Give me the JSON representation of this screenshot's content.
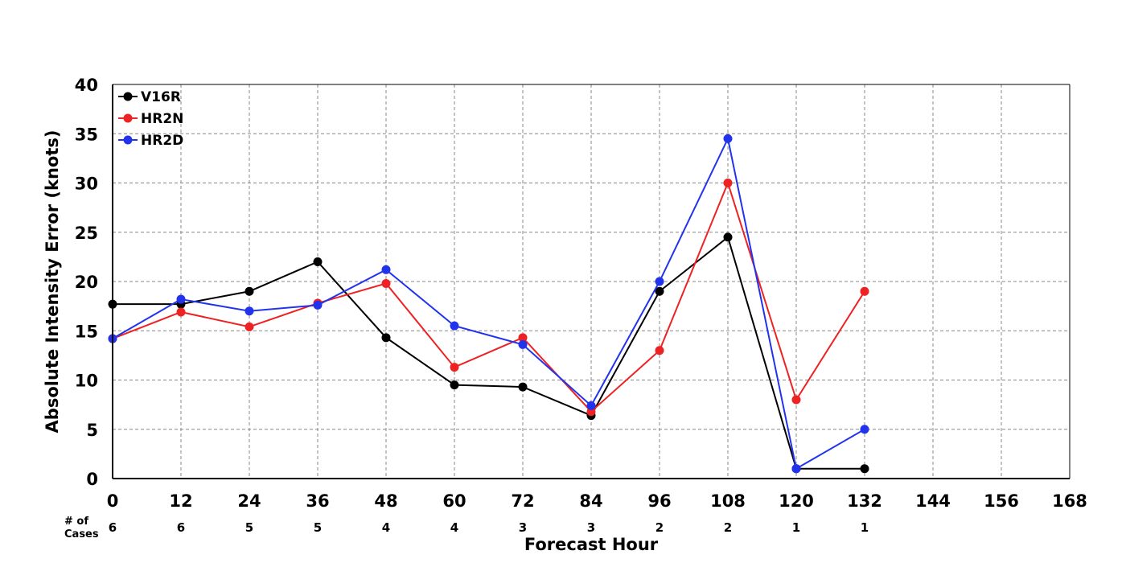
{
  "chart_data": {
    "type": "line",
    "xlabel": "Forecast Hour",
    "ylabel": "Absolute Intensity Error (knots)",
    "xlim": [
      0,
      168
    ],
    "ylim": [
      0,
      40
    ],
    "x_ticks": [
      0,
      12,
      24,
      36,
      48,
      60,
      72,
      84,
      96,
      108,
      120,
      132,
      144,
      156,
      168
    ],
    "y_ticks": [
      0,
      5,
      10,
      15,
      20,
      25,
      30,
      35,
      40
    ],
    "grid": true,
    "legend_position": "top-left",
    "cases_title": [
      "# of",
      "Cases"
    ],
    "cases_x": [
      0,
      12,
      24,
      36,
      48,
      60,
      72,
      84,
      96,
      108,
      120,
      132
    ],
    "cases": [
      6,
      6,
      5,
      5,
      4,
      4,
      3,
      3,
      2,
      2,
      1,
      1
    ],
    "series": [
      {
        "name": "V16R",
        "color": "#000000",
        "x": [
          0,
          12,
          24,
          36,
          48,
          60,
          72,
          84,
          96,
          108,
          120,
          132
        ],
        "values": [
          17.7,
          17.7,
          19.0,
          22.0,
          14.3,
          9.5,
          9.3,
          6.4,
          19.0,
          24.5,
          1.0,
          1.0
        ]
      },
      {
        "name": "HR2N",
        "color": "#ee2222",
        "x": [
          0,
          12,
          24,
          36,
          48,
          60,
          72,
          84,
          96,
          108,
          120,
          132
        ],
        "values": [
          14.2,
          16.9,
          15.4,
          17.8,
          19.8,
          11.3,
          14.3,
          6.8,
          13.0,
          30.0,
          8.0,
          19.0
        ]
      },
      {
        "name": "HR2D",
        "color": "#2233ee",
        "x": [
          0,
          12,
          24,
          36,
          48,
          60,
          72,
          84,
          96,
          108,
          120,
          132
        ],
        "values": [
          14.2,
          18.2,
          17.0,
          17.6,
          21.2,
          15.5,
          13.6,
          7.4,
          20.0,
          34.5,
          1.0,
          5.0
        ]
      }
    ]
  }
}
